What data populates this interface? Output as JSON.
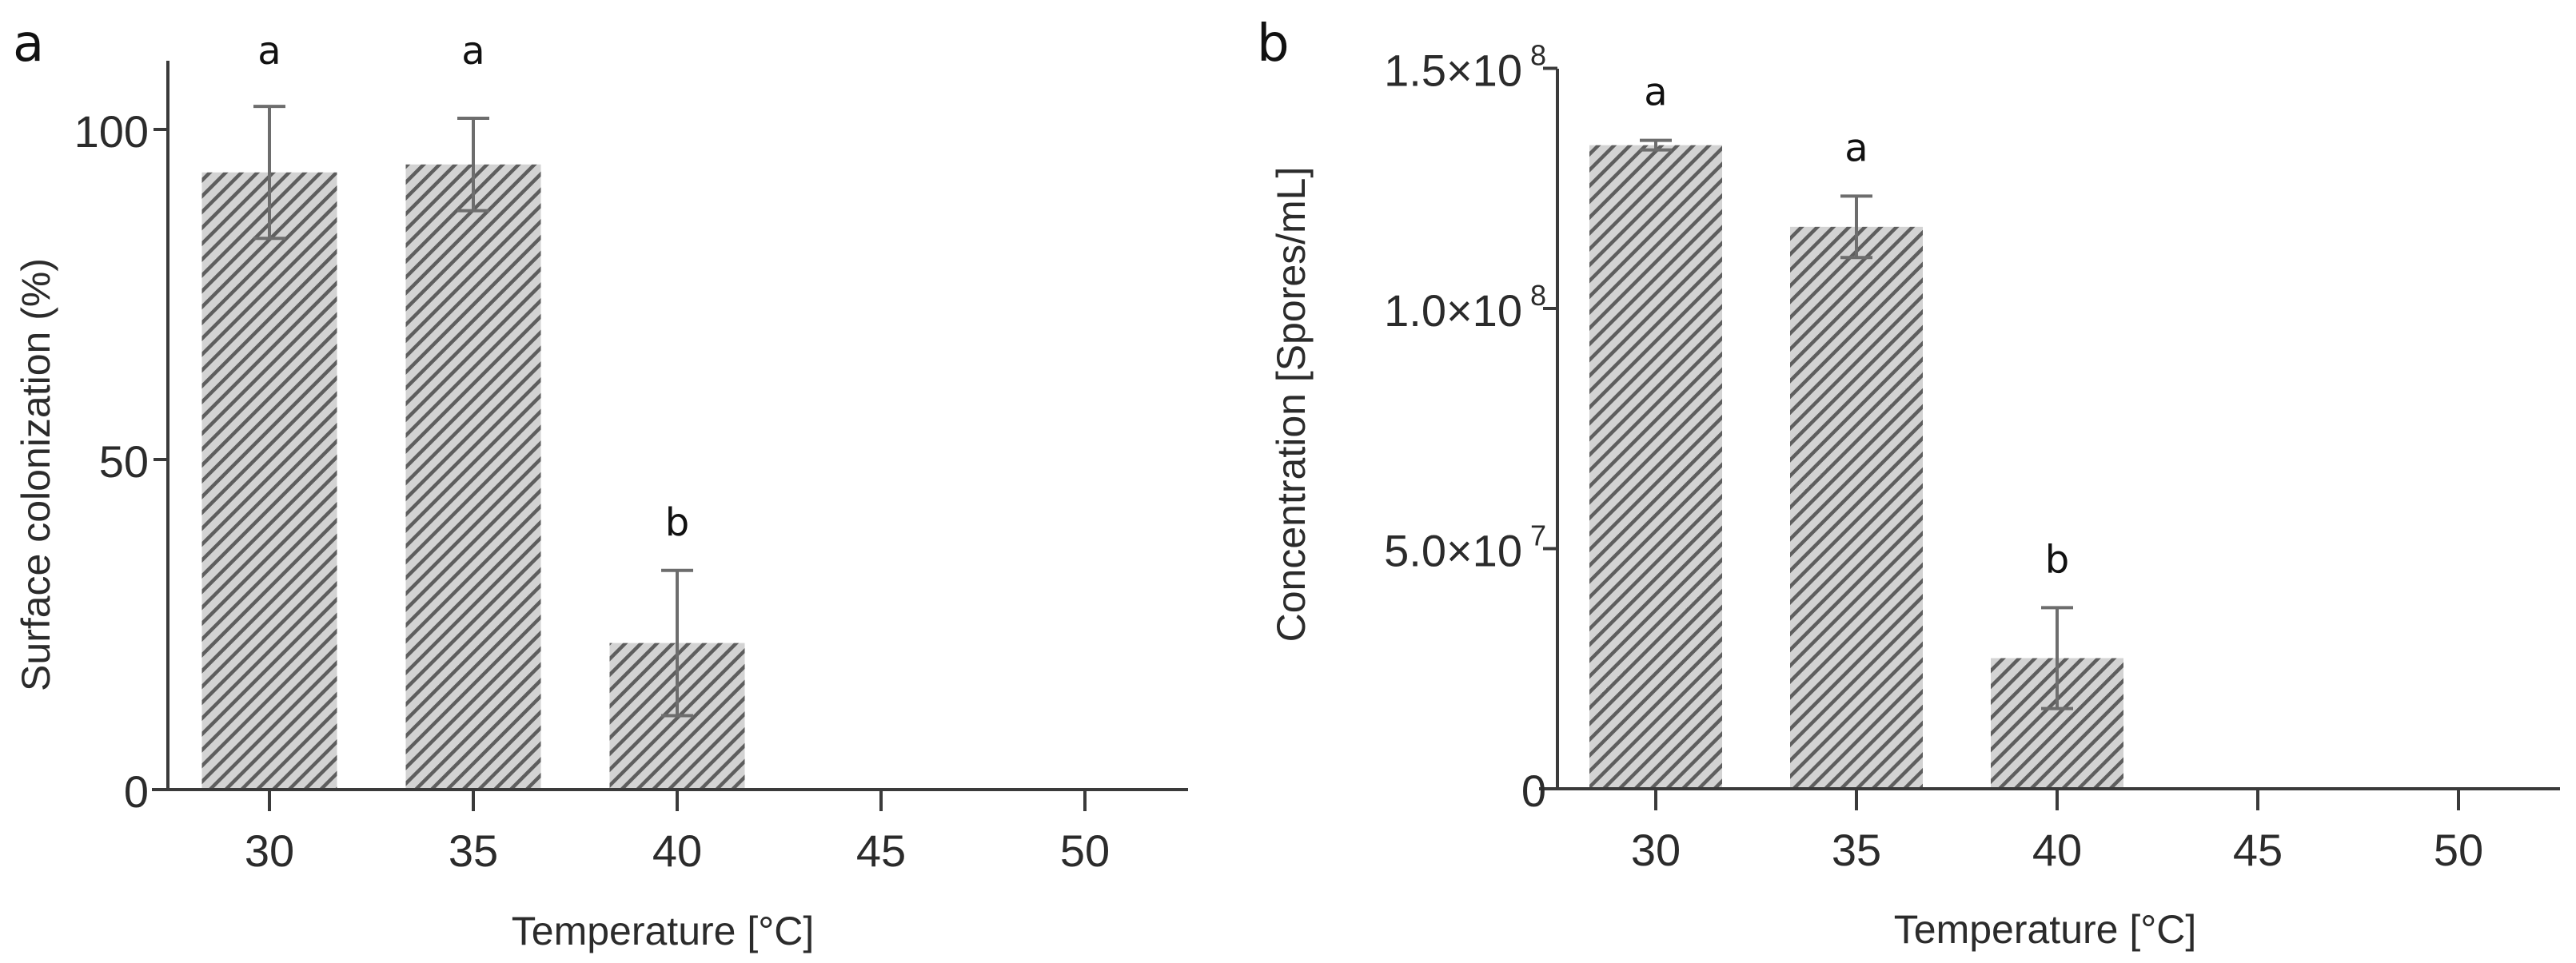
{
  "figure": {
    "panels": [
      {
        "label": "a"
      },
      {
        "label": "b"
      }
    ]
  },
  "style": {
    "bar_fill": "#d3d3d3",
    "hatch_color": "#5e5e5e",
    "axis_color": "#3a3a3a",
    "error_bar_color": "#6d6d6d"
  },
  "chart_data": [
    {
      "panel": "a",
      "type": "bar",
      "title": "",
      "xlabel": "Temperature [°C]",
      "ylabel": "Surface colonization (%)",
      "categories": [
        "30",
        "35",
        "40",
        "45",
        "50"
      ],
      "values": [
        93.5,
        94.7,
        22.2,
        0,
        0
      ],
      "errors": [
        10.0,
        7.0,
        11.0,
        0,
        0
      ],
      "significance_letters": [
        "a",
        "a",
        "b",
        "",
        ""
      ],
      "yticks": [
        0,
        50,
        100
      ],
      "ytick_labels": [
        "0",
        "50",
        "100"
      ],
      "ylim": [
        0,
        110
      ],
      "grid": false,
      "legend": null,
      "bar_pattern": "diagonal hatch"
    },
    {
      "panel": "b",
      "type": "bar",
      "title": "",
      "xlabel": "Temperature [°C]",
      "ylabel": "Concentration [Spores/mL]",
      "categories": [
        "30",
        "35",
        "40",
        "45",
        "50"
      ],
      "values": [
        134000000,
        117000000,
        27200000,
        0,
        0
      ],
      "errors": [
        1000000,
        6400000,
        10500000,
        0,
        0
      ],
      "significance_letters": [
        "a",
        "a",
        "b",
        "",
        ""
      ],
      "yticks": [
        0,
        50000000,
        100000000,
        150000000
      ],
      "ytick_labels": [
        {
          "mantissa": "0",
          "exp": ""
        },
        {
          "mantissa": "5.0×10",
          "exp": "7"
        },
        {
          "mantissa": "1.0×10",
          "exp": "8"
        },
        {
          "mantissa": "1.5×10",
          "exp": "8"
        }
      ],
      "ylim": [
        0,
        150000000
      ],
      "grid": false,
      "legend": null,
      "bar_pattern": "diagonal hatch"
    }
  ]
}
